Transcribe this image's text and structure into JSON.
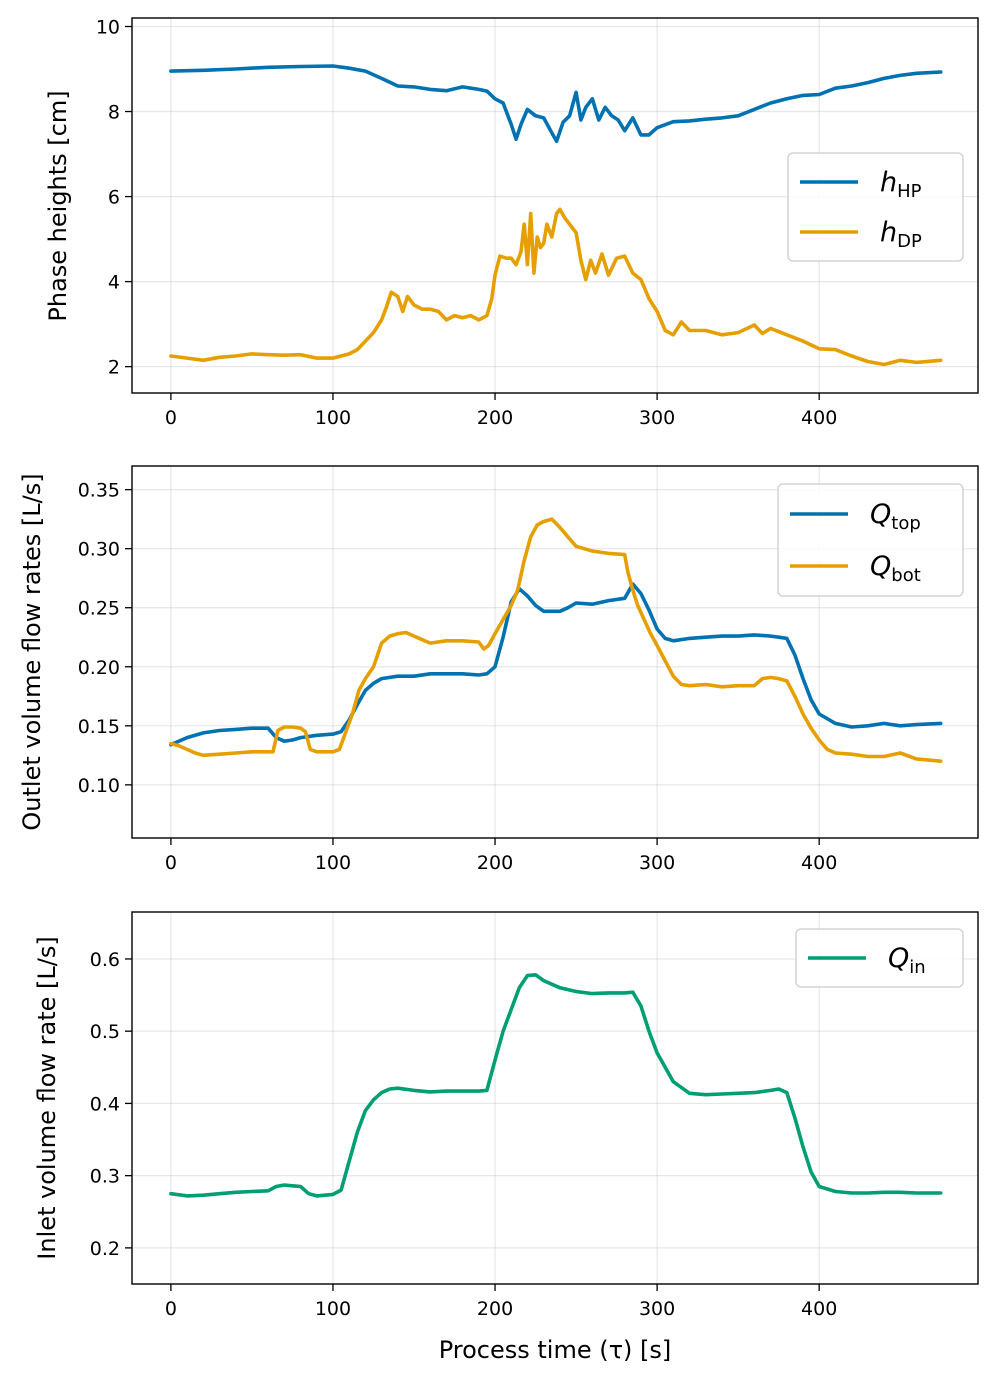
{
  "chart_data": [
    {
      "type": "line",
      "ylabel": "Phase heights [cm]",
      "xlabel": "",
      "xlim": [
        -24,
        498
      ],
      "ylim": [
        1.38,
        10.2
      ],
      "xticks": [
        0,
        100,
        200,
        300,
        400
      ],
      "yticks": [
        2,
        4,
        6,
        8,
        10
      ],
      "grid": true,
      "legend_position": "center-right",
      "series": [
        {
          "name": "h_HP",
          "legend_main": "h",
          "legend_sub": "HP",
          "color": "#0072B2",
          "x": [
            0,
            20,
            40,
            60,
            80,
            100,
            110,
            120,
            130,
            140,
            150,
            160,
            170,
            180,
            190,
            195,
            200,
            205,
            210,
            213,
            216,
            220,
            225,
            230,
            235,
            238,
            242,
            246,
            250,
            253,
            256,
            260,
            264,
            268,
            272,
            276,
            280,
            285,
            290,
            295,
            300,
            310,
            320,
            330,
            340,
            350,
            360,
            370,
            380,
            390,
            400,
            410,
            420,
            430,
            440,
            450,
            460,
            475
          ],
          "y": [
            8.95,
            8.97,
            9.0,
            9.04,
            9.06,
            9.07,
            9.02,
            8.95,
            8.78,
            8.6,
            8.58,
            8.52,
            8.49,
            8.58,
            8.52,
            8.48,
            8.3,
            8.2,
            7.7,
            7.35,
            7.7,
            8.05,
            7.9,
            7.85,
            7.5,
            7.3,
            7.75,
            7.9,
            8.45,
            7.8,
            8.1,
            8.3,
            7.8,
            8.1,
            7.9,
            7.8,
            7.55,
            7.85,
            7.45,
            7.45,
            7.62,
            7.76,
            7.78,
            7.82,
            7.85,
            7.9,
            8.05,
            8.2,
            8.3,
            8.38,
            8.4,
            8.55,
            8.6,
            8.68,
            8.78,
            8.85,
            8.9,
            8.93
          ]
        },
        {
          "name": "h_DP",
          "legend_main": "h",
          "legend_sub": "DP",
          "color": "#E69F00",
          "x": [
            0,
            10,
            20,
            30,
            40,
            50,
            60,
            70,
            80,
            90,
            100,
            110,
            115,
            120,
            125,
            130,
            133,
            136,
            140,
            143,
            146,
            150,
            155,
            160,
            165,
            170,
            175,
            180,
            185,
            190,
            195,
            198,
            200,
            203,
            207,
            210,
            213,
            216,
            218,
            220,
            222,
            224,
            226,
            228,
            230,
            232,
            235,
            238,
            240,
            243,
            245,
            248,
            250,
            253,
            256,
            259,
            262,
            266,
            270,
            275,
            280,
            285,
            290,
            295,
            300,
            305,
            310,
            315,
            320,
            330,
            340,
            350,
            360,
            365,
            370,
            380,
            390,
            400,
            410,
            420,
            430,
            440,
            450,
            460,
            475
          ],
          "y": [
            2.25,
            2.2,
            2.15,
            2.22,
            2.25,
            2.3,
            2.28,
            2.27,
            2.28,
            2.2,
            2.2,
            2.3,
            2.4,
            2.6,
            2.8,
            3.1,
            3.4,
            3.75,
            3.65,
            3.3,
            3.65,
            3.45,
            3.35,
            3.35,
            3.3,
            3.1,
            3.2,
            3.15,
            3.2,
            3.1,
            3.2,
            3.6,
            4.15,
            4.6,
            4.55,
            4.55,
            4.4,
            4.7,
            5.35,
            4.4,
            5.6,
            4.2,
            5.05,
            4.8,
            4.9,
            5.35,
            5.05,
            5.6,
            5.7,
            5.5,
            5.4,
            5.25,
            5.15,
            4.5,
            4.05,
            4.5,
            4.2,
            4.65,
            4.15,
            4.55,
            4.6,
            4.2,
            4.05,
            3.6,
            3.3,
            2.85,
            2.75,
            3.05,
            2.85,
            2.85,
            2.75,
            2.8,
            2.98,
            2.78,
            2.9,
            2.75,
            2.6,
            2.42,
            2.4,
            2.25,
            2.12,
            2.05,
            2.15,
            2.1,
            2.15
          ]
        }
      ]
    },
    {
      "type": "line",
      "ylabel": "Outlet volume flow rates [L/s]",
      "xlabel": "",
      "xlim": [
        -24,
        498
      ],
      "ylim": [
        0.055,
        0.37
      ],
      "xticks": [
        0,
        100,
        200,
        300,
        400
      ],
      "yticks": [
        0.1,
        0.15,
        0.2,
        0.25,
        0.3,
        0.35
      ],
      "ytick_labels": [
        "0.10",
        "0.15",
        "0.20",
        "0.25",
        "0.30",
        "0.35"
      ],
      "grid": true,
      "legend_position": "top-right",
      "series": [
        {
          "name": "Q_top",
          "legend_main": "Q",
          "legend_sub": "top",
          "color": "#0072B2",
          "x": [
            0,
            10,
            20,
            30,
            40,
            50,
            60,
            65,
            70,
            75,
            80,
            90,
            100,
            105,
            110,
            115,
            120,
            125,
            130,
            140,
            150,
            160,
            170,
            180,
            190,
            195,
            200,
            205,
            210,
            215,
            220,
            225,
            230,
            240,
            245,
            250,
            260,
            270,
            280,
            285,
            290,
            295,
            300,
            305,
            310,
            320,
            330,
            340,
            350,
            360,
            370,
            375,
            380,
            385,
            390,
            395,
            400,
            410,
            420,
            430,
            440,
            450,
            460,
            475
          ],
          "y": [
            0.134,
            0.14,
            0.144,
            0.146,
            0.147,
            0.148,
            0.148,
            0.14,
            0.137,
            0.138,
            0.14,
            0.142,
            0.143,
            0.145,
            0.155,
            0.168,
            0.18,
            0.186,
            0.19,
            0.192,
            0.192,
            0.194,
            0.194,
            0.194,
            0.193,
            0.194,
            0.2,
            0.225,
            0.255,
            0.266,
            0.26,
            0.252,
            0.247,
            0.247,
            0.25,
            0.254,
            0.253,
            0.256,
            0.258,
            0.27,
            0.262,
            0.248,
            0.232,
            0.224,
            0.222,
            0.224,
            0.225,
            0.226,
            0.226,
            0.227,
            0.226,
            0.225,
            0.224,
            0.21,
            0.19,
            0.172,
            0.16,
            0.152,
            0.149,
            0.15,
            0.152,
            0.15,
            0.151,
            0.152
          ]
        },
        {
          "name": "Q_bot",
          "legend_main": "Q",
          "legend_sub": "bot",
          "color": "#E69F00",
          "x": [
            0,
            5,
            10,
            15,
            20,
            30,
            40,
            50,
            55,
            60,
            63,
            66,
            70,
            75,
            80,
            83,
            86,
            90,
            100,
            104,
            108,
            112,
            116,
            120,
            125,
            130,
            135,
            140,
            145,
            150,
            160,
            170,
            180,
            190,
            193,
            196,
            200,
            205,
            210,
            214,
            218,
            222,
            226,
            230,
            235,
            240,
            245,
            250,
            255,
            260,
            270,
            280,
            282,
            285,
            288,
            292,
            296,
            300,
            305,
            310,
            315,
            320,
            330,
            340,
            350,
            360,
            365,
            370,
            375,
            380,
            385,
            390,
            395,
            400,
            405,
            410,
            420,
            430,
            440,
            450,
            460,
            475
          ],
          "y": [
            0.135,
            0.133,
            0.13,
            0.127,
            0.125,
            0.126,
            0.127,
            0.128,
            0.128,
            0.128,
            0.128,
            0.146,
            0.149,
            0.149,
            0.148,
            0.145,
            0.13,
            0.128,
            0.128,
            0.13,
            0.145,
            0.16,
            0.18,
            0.19,
            0.2,
            0.22,
            0.226,
            0.228,
            0.229,
            0.226,
            0.22,
            0.222,
            0.222,
            0.221,
            0.215,
            0.218,
            0.228,
            0.24,
            0.252,
            0.265,
            0.29,
            0.31,
            0.32,
            0.323,
            0.325,
            0.318,
            0.31,
            0.302,
            0.3,
            0.298,
            0.296,
            0.295,
            0.28,
            0.265,
            0.252,
            0.24,
            0.228,
            0.218,
            0.205,
            0.192,
            0.185,
            0.184,
            0.185,
            0.183,
            0.184,
            0.184,
            0.19,
            0.191,
            0.19,
            0.188,
            0.175,
            0.16,
            0.148,
            0.138,
            0.13,
            0.127,
            0.126,
            0.124,
            0.124,
            0.127,
            0.122,
            0.12
          ]
        }
      ]
    },
    {
      "type": "line",
      "ylabel": "Inlet volume flow rate [L/s]",
      "xlabel": "Process time (τ) [s]",
      "xlim": [
        -24,
        498
      ],
      "ylim": [
        0.15,
        0.665
      ],
      "xticks": [
        0,
        100,
        200,
        300,
        400
      ],
      "yticks": [
        0.2,
        0.3,
        0.4,
        0.5,
        0.6
      ],
      "ytick_labels": [
        "0.2",
        "0.3",
        "0.4",
        "0.5",
        "0.6"
      ],
      "grid": true,
      "legend_position": "top-right",
      "series": [
        {
          "name": "Q_in",
          "legend_main": "Q",
          "legend_sub": "in",
          "color": "#009E73",
          "x": [
            0,
            10,
            20,
            30,
            40,
            50,
            60,
            65,
            70,
            75,
            80,
            85,
            90,
            100,
            105,
            110,
            115,
            120,
            125,
            130,
            135,
            140,
            150,
            160,
            170,
            180,
            190,
            195,
            200,
            205,
            210,
            215,
            220,
            225,
            230,
            240,
            250,
            260,
            270,
            280,
            285,
            290,
            295,
            300,
            305,
            310,
            320,
            330,
            340,
            350,
            360,
            370,
            375,
            380,
            385,
            390,
            395,
            400,
            410,
            420,
            430,
            440,
            450,
            460,
            475
          ],
          "y": [
            0.275,
            0.272,
            0.273,
            0.275,
            0.277,
            0.278,
            0.279,
            0.285,
            0.287,
            0.286,
            0.285,
            0.275,
            0.272,
            0.274,
            0.28,
            0.32,
            0.36,
            0.39,
            0.405,
            0.415,
            0.42,
            0.421,
            0.418,
            0.416,
            0.417,
            0.417,
            0.417,
            0.418,
            0.46,
            0.5,
            0.53,
            0.56,
            0.577,
            0.578,
            0.57,
            0.56,
            0.555,
            0.552,
            0.553,
            0.553,
            0.554,
            0.535,
            0.5,
            0.47,
            0.45,
            0.43,
            0.414,
            0.412,
            0.413,
            0.414,
            0.415,
            0.418,
            0.42,
            0.415,
            0.38,
            0.34,
            0.305,
            0.285,
            0.278,
            0.276,
            0.276,
            0.277,
            0.277,
            0.276,
            0.276
          ]
        }
      ]
    }
  ]
}
